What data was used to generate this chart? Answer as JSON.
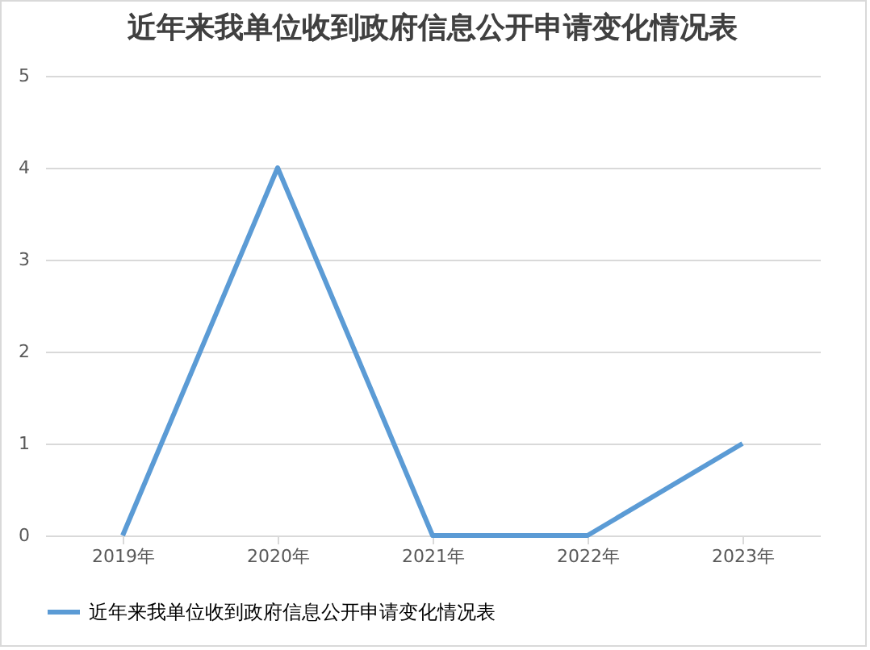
{
  "chart_data": {
    "type": "line",
    "title": "近年来我单位收到政府信息公开申请变化情况表",
    "categories": [
      "2019年",
      "2020年",
      "2021年",
      "2022年",
      "2023年"
    ],
    "series": [
      {
        "name": "近年来我单位收到政府信息公开申请变化情况表",
        "color": "#5b9bd5",
        "values": [
          0,
          4,
          0,
          0,
          1
        ]
      }
    ],
    "ylim": [
      0,
      5
    ],
    "yticks": [
      0,
      1,
      2,
      3,
      4,
      5
    ],
    "grid": "y",
    "legend": "bottom"
  }
}
